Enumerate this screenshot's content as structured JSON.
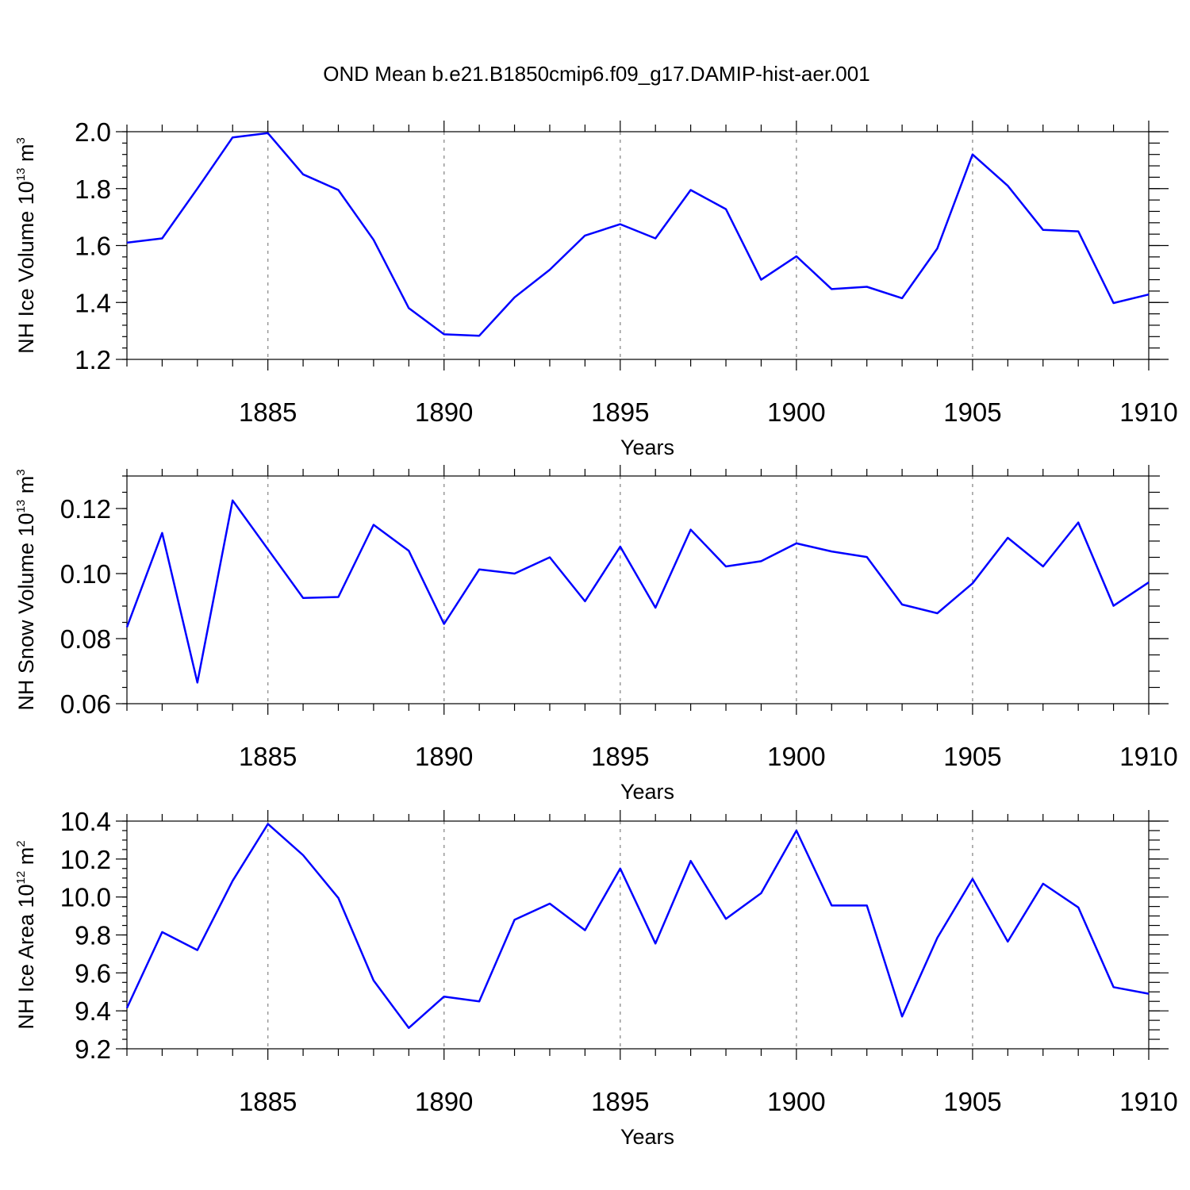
{
  "chart_data": [
    {
      "type": "line",
      "title": "OND Mean b.e21.B1850cmip6.f09_g17.DAMIP-hist-aer.001",
      "xlabel": "Years",
      "ylabel": "NH Ice Volume 10",
      "ylabel_exp": "13",
      "ylabel_unit": " m",
      "ylabel_unit_exp": "3",
      "xlim": [
        1881,
        1910
      ],
      "ylim": [
        1.2,
        2.0
      ],
      "xticks": [
        1885,
        1890,
        1895,
        1900,
        1905,
        1910
      ],
      "yticks": [
        1.2,
        1.4,
        1.6,
        1.8,
        2.0
      ],
      "ytick_labels": [
        "1.2",
        "1.4",
        "1.6",
        "1.8",
        "2.0"
      ],
      "y_minor_step": 0.04,
      "x": [
        1881,
        1882,
        1883,
        1884,
        1885,
        1886,
        1887,
        1888,
        1889,
        1890,
        1891,
        1892,
        1893,
        1894,
        1895,
        1896,
        1897,
        1898,
        1899,
        1900,
        1901,
        1902,
        1903,
        1904,
        1905,
        1906,
        1907,
        1908,
        1909,
        1910
      ],
      "series": [
        {
          "name": "NH Ice Volume",
          "color": "#0000ff",
          "values": [
            1.61,
            1.625,
            1.8,
            1.98,
            1.995,
            1.85,
            1.795,
            1.62,
            1.38,
            1.288,
            1.283,
            1.418,
            1.515,
            1.635,
            1.675,
            1.625,
            1.795,
            1.728,
            1.48,
            1.562,
            1.447,
            1.455,
            1.415,
            1.59,
            1.92,
            1.81,
            1.655,
            1.65,
            1.398,
            1.428
          ]
        }
      ]
    },
    {
      "type": "line",
      "title": "",
      "xlabel": "Years",
      "ylabel": "NH Snow Volume 10",
      "ylabel_exp": "13",
      "ylabel_unit": " m",
      "ylabel_unit_exp": "3",
      "xlim": [
        1881,
        1910
      ],
      "ylim": [
        0.06,
        0.13
      ],
      "xticks": [
        1885,
        1890,
        1895,
        1900,
        1905,
        1910
      ],
      "yticks": [
        0.06,
        0.08,
        0.1,
        0.12
      ],
      "ytick_labels": [
        "0.06",
        "0.08",
        "0.10",
        "0.12"
      ],
      "y_minor_step": 0.005,
      "x": [
        1881,
        1882,
        1883,
        1884,
        1885,
        1886,
        1887,
        1888,
        1889,
        1890,
        1891,
        1892,
        1893,
        1894,
        1895,
        1896,
        1897,
        1898,
        1899,
        1900,
        1901,
        1902,
        1903,
        1904,
        1905,
        1906,
        1907,
        1908,
        1909,
        1910
      ],
      "series": [
        {
          "name": "NH Snow Volume",
          "color": "#0000ff",
          "values": [
            0.0835,
            0.1125,
            0.0665,
            0.1225,
            0.1075,
            0.0925,
            0.0928,
            0.115,
            0.107,
            0.0845,
            0.1013,
            0.1,
            0.105,
            0.0915,
            0.1083,
            0.0895,
            0.1135,
            0.1022,
            0.1038,
            0.1093,
            0.1068,
            0.1051,
            0.0905,
            0.0878,
            0.097,
            0.111,
            0.1022,
            0.1157,
            0.0901,
            0.0973
          ]
        }
      ]
    },
    {
      "type": "line",
      "title": "",
      "xlabel": "Years",
      "ylabel": "NH Ice Area 10",
      "ylabel_exp": "12",
      "ylabel_unit": " m",
      "ylabel_unit_exp": "2",
      "xlim": [
        1881,
        1910
      ],
      "ylim": [
        9.2,
        10.4
      ],
      "xticks": [
        1885,
        1890,
        1895,
        1900,
        1905,
        1910
      ],
      "yticks": [
        9.2,
        9.4,
        9.6,
        9.8,
        10.0,
        10.2,
        10.4
      ],
      "ytick_labels": [
        "9.2",
        "9.4",
        "9.6",
        "9.8",
        "10.0",
        "10.2",
        "10.4"
      ],
      "y_minor_step": 0.05,
      "x": [
        1881,
        1882,
        1883,
        1884,
        1885,
        1886,
        1887,
        1888,
        1889,
        1890,
        1891,
        1892,
        1893,
        1894,
        1895,
        1896,
        1897,
        1898,
        1899,
        1900,
        1901,
        1902,
        1903,
        1904,
        1905,
        1906,
        1907,
        1908,
        1909,
        1910
      ],
      "series": [
        {
          "name": "NH Ice Area",
          "color": "#0000ff",
          "values": [
            9.415,
            9.815,
            9.72,
            10.085,
            10.385,
            10.22,
            9.995,
            9.56,
            9.31,
            9.475,
            9.45,
            9.88,
            9.965,
            9.825,
            10.15,
            9.755,
            10.19,
            9.885,
            10.02,
            10.35,
            9.955,
            9.955,
            9.37,
            9.785,
            10.095,
            9.765,
            10.07,
            9.945,
            9.525,
            9.49
          ]
        }
      ]
    }
  ]
}
